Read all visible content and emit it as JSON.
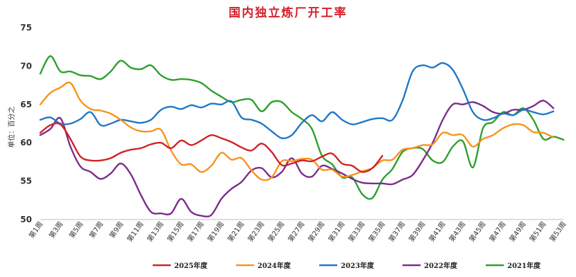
{
  "chart_data": {
    "type": "line",
    "title": "国内独立炼厂开工率",
    "ylabel": "单位：百分之",
    "xlabel": "",
    "ylim": [
      50,
      75
    ],
    "yticks": [
      50,
      55,
      60,
      65,
      70,
      75
    ],
    "x_range": [
      1,
      53
    ],
    "xtick_labels": [
      "第1周",
      "第3周",
      "第5周",
      "第7周",
      "第9周",
      "第11周",
      "第13周",
      "第15周",
      "第17周",
      "第19周",
      "第21周",
      "第23周",
      "第25周",
      "第27周",
      "第29周",
      "第31周",
      "第33周",
      "第35周",
      "第37周",
      "第39周",
      "第41周",
      "第43周",
      "第45周",
      "第47周",
      "第49周",
      "第51周",
      "第53周"
    ],
    "xtick_weeks": [
      1,
      3,
      5,
      7,
      9,
      11,
      13,
      15,
      17,
      19,
      21,
      23,
      25,
      27,
      29,
      31,
      33,
      35,
      37,
      39,
      41,
      43,
      45,
      47,
      49,
      51,
      53
    ],
    "grid": "none",
    "legend": "bottom",
    "series": [
      {
        "name": "2025年度",
        "color": "#d22027",
        "x": [
          1,
          2,
          3,
          4,
          5,
          6,
          7,
          8,
          9,
          10,
          11,
          12,
          13,
          14,
          15,
          16,
          17,
          18,
          19,
          20,
          21,
          22,
          23,
          24,
          25,
          26,
          27,
          28,
          29,
          30,
          31,
          32,
          33,
          34,
          35
        ],
        "values": [
          61.3,
          62.3,
          62.4,
          60.5,
          58.2,
          57.7,
          57.7,
          58.0,
          58.7,
          59.1,
          59.3,
          59.8,
          60.0,
          59.3,
          60.3,
          59.7,
          60.3,
          61.0,
          60.6,
          60.1,
          59.4,
          59.0,
          59.9,
          58.8,
          57.1,
          57.3,
          57.7,
          57.6,
          58.2,
          58.6,
          57.3,
          57.0,
          56.2,
          56.7,
          58.3
        ]
      },
      {
        "name": "2024年度",
        "color": "#f7931e",
        "x": [
          1,
          2,
          3,
          4,
          5,
          6,
          7,
          8,
          9,
          10,
          11,
          12,
          13,
          14,
          15,
          16,
          17,
          18,
          19,
          20,
          21,
          22,
          23,
          24,
          25,
          26,
          27,
          28,
          29,
          30,
          31,
          32,
          33,
          34,
          35,
          36,
          37,
          38,
          39,
          40,
          41,
          42,
          43,
          44,
          45,
          46,
          47,
          48,
          49,
          50,
          51,
          52
        ],
        "values": [
          65.0,
          66.5,
          67.2,
          67.8,
          65.5,
          64.4,
          64.2,
          63.8,
          63.0,
          62.0,
          61.5,
          61.5,
          61.7,
          59.0,
          57.2,
          57.2,
          56.2,
          57.0,
          58.7,
          57.8,
          58.0,
          56.4,
          55.2,
          55.5,
          57.6,
          57.6,
          57.9,
          57.8,
          56.5,
          56.5,
          55.6,
          55.8,
          56.3,
          56.7,
          57.7,
          57.8,
          59.1,
          59.3,
          59.7,
          59.8,
          61.3,
          61.0,
          61.0,
          59.5,
          60.5,
          61.0,
          61.9,
          62.4,
          62.3,
          61.4,
          61.3,
          60.7
        ]
      },
      {
        "name": "2023年度",
        "color": "#1f77c8",
        "x": [
          1,
          2,
          3,
          4,
          5,
          6,
          7,
          8,
          9,
          10,
          11,
          12,
          13,
          14,
          15,
          16,
          17,
          18,
          19,
          20,
          21,
          22,
          23,
          24,
          25,
          26,
          27,
          28,
          29,
          30,
          31,
          32,
          33,
          34,
          35,
          36,
          37,
          38,
          39,
          40,
          41,
          42,
          43,
          44,
          45,
          46,
          47,
          48,
          49,
          50,
          51,
          52
        ],
        "values": [
          63.0,
          63.3,
          62.5,
          62.5,
          63.1,
          64.0,
          62.3,
          62.5,
          63.0,
          62.8,
          62.6,
          63.0,
          64.3,
          64.7,
          64.4,
          64.9,
          64.6,
          65.1,
          65.0,
          65.4,
          63.3,
          63.0,
          62.5,
          61.5,
          60.6,
          61.0,
          62.6,
          63.6,
          62.8,
          64.0,
          63.0,
          62.4,
          62.7,
          63.1,
          63.2,
          63.0,
          65.5,
          69.3,
          70.1,
          69.8,
          70.4,
          69.5,
          67.0,
          64.0,
          63.0,
          63.2,
          63.8,
          63.6,
          64.3,
          64.0,
          63.7,
          64.1
        ]
      },
      {
        "name": "2022年度",
        "color": "#7b2d8b",
        "x": [
          1,
          2,
          3,
          4,
          5,
          6,
          7,
          8,
          9,
          10,
          11,
          12,
          13,
          14,
          15,
          16,
          17,
          18,
          19,
          20,
          21,
          22,
          23,
          24,
          25,
          26,
          27,
          28,
          29,
          30,
          31,
          32,
          33,
          34,
          35,
          36,
          37,
          38,
          39,
          40,
          41,
          42,
          43,
          44,
          45,
          46,
          47,
          48,
          49,
          50,
          51,
          52
        ],
        "values": [
          61.0,
          61.8,
          63.2,
          59.5,
          56.9,
          56.2,
          55.3,
          56.0,
          57.3,
          55.9,
          53.2,
          51.0,
          50.8,
          50.8,
          52.7,
          51.0,
          50.5,
          50.6,
          52.7,
          54.0,
          54.9,
          56.4,
          56.7,
          55.5,
          56.2,
          58.0,
          56.0,
          55.6,
          57.0,
          56.6,
          56.0,
          55.3,
          54.8,
          54.7,
          54.7,
          54.6,
          55.2,
          55.8,
          57.7,
          60.0,
          63.0,
          65.0,
          65.0,
          65.3,
          64.8,
          64.0,
          63.8,
          64.3,
          64.3,
          64.8,
          65.5,
          64.5
        ]
      },
      {
        "name": "2021年度",
        "color": "#2ca02c",
        "x": [
          1,
          2,
          3,
          4,
          5,
          6,
          7,
          8,
          9,
          10,
          11,
          12,
          13,
          14,
          15,
          16,
          17,
          18,
          19,
          20,
          21,
          22,
          23,
          24,
          25,
          26,
          27,
          28,
          29,
          30,
          31,
          32,
          33,
          34,
          35,
          36,
          37,
          38,
          39,
          40,
          41,
          42,
          43,
          44,
          45,
          46,
          47,
          48,
          49,
          50,
          51,
          52,
          53
        ],
        "values": [
          69.0,
          71.3,
          69.3,
          69.3,
          68.8,
          68.7,
          68.3,
          69.3,
          70.7,
          69.8,
          69.6,
          70.1,
          68.8,
          68.2,
          68.3,
          68.2,
          67.8,
          66.8,
          66.0,
          65.3,
          65.6,
          65.6,
          64.1,
          65.3,
          65.3,
          64.0,
          63.1,
          61.8,
          58.3,
          57.2,
          55.5,
          55.5,
          53.3,
          52.8,
          55.2,
          56.6,
          58.8,
          59.3,
          59.2,
          57.7,
          57.5,
          59.5,
          60.2,
          56.8,
          61.9,
          62.7,
          64.0,
          63.6,
          64.5,
          63.0,
          60.5,
          60.8,
          60.4
        ]
      }
    ]
  }
}
